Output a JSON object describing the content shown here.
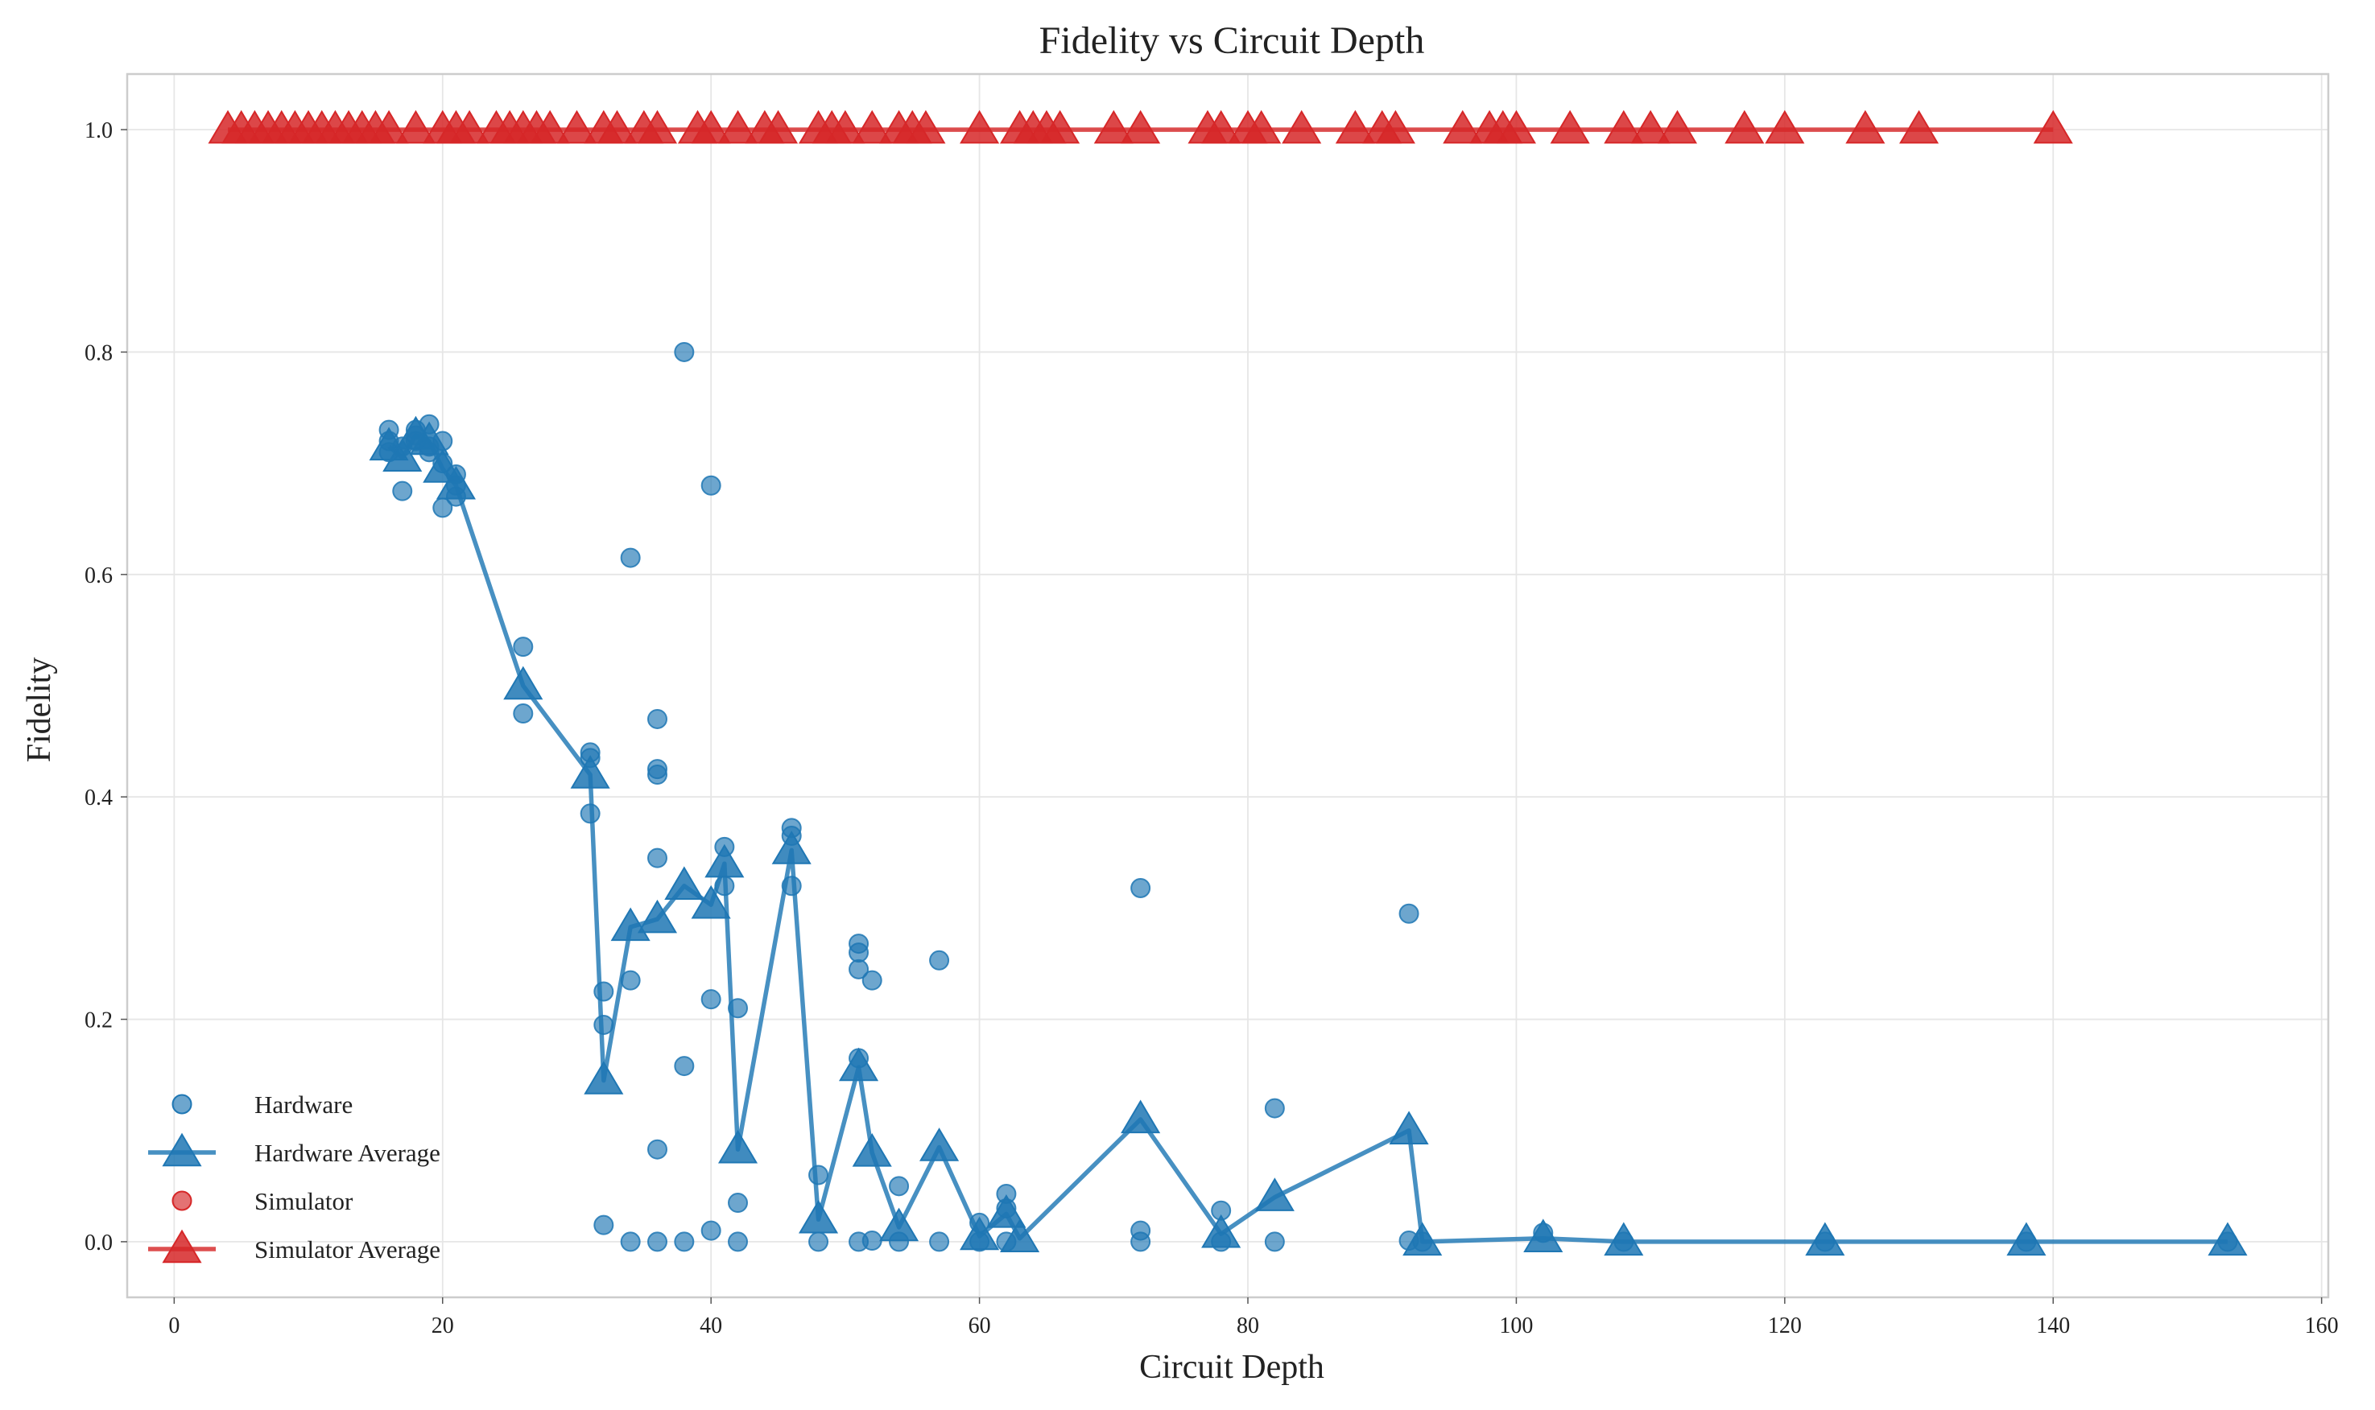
{
  "chart_data": {
    "type": "scatter",
    "title": "Fidelity vs Circuit Depth",
    "xlabel": "Circuit Depth",
    "ylabel": "Fidelity",
    "xlim": [
      -3.5,
      160.5
    ],
    "ylim": [
      -0.05,
      1.05
    ],
    "xticks": [
      0,
      20,
      40,
      60,
      80,
      100,
      120,
      140,
      160
    ],
    "yticks": [
      0.0,
      0.2,
      0.4,
      0.6,
      0.8,
      1.0
    ],
    "grid": true,
    "legend_position": "bottom-left",
    "colors": {
      "hardware": "#1f77b4",
      "simulator": "#d62728"
    },
    "series": [
      {
        "name": "Hardware",
        "kind": "scatter",
        "points": [
          [
            16,
            0.73
          ],
          [
            16,
            0.72
          ],
          [
            16,
            0.71
          ],
          [
            17,
            0.675
          ],
          [
            17,
            0.715
          ],
          [
            18,
            0.73
          ],
          [
            18,
            0.725
          ],
          [
            18,
            0.72
          ],
          [
            19,
            0.735
          ],
          [
            19,
            0.715
          ],
          [
            19,
            0.71
          ],
          [
            20,
            0.72
          ],
          [
            20,
            0.7
          ],
          [
            20,
            0.66
          ],
          [
            21,
            0.69
          ],
          [
            21,
            0.68
          ],
          [
            21,
            0.67
          ],
          [
            26,
            0.535
          ],
          [
            26,
            0.475
          ],
          [
            31,
            0.44
          ],
          [
            31,
            0.435
          ],
          [
            31,
            0.385
          ],
          [
            32,
            0.225
          ],
          [
            32,
            0.195
          ],
          [
            32,
            0.015
          ],
          [
            34,
            0.615
          ],
          [
            34,
            0.235
          ],
          [
            34,
            0.0
          ],
          [
            36,
            0.47
          ],
          [
            36,
            0.425
          ],
          [
            36,
            0.42
          ],
          [
            36,
            0.345
          ],
          [
            36,
            0.083
          ],
          [
            36,
            0.0
          ],
          [
            38,
            0.8
          ],
          [
            38,
            0.158
          ],
          [
            38,
            0.0
          ],
          [
            40,
            0.68
          ],
          [
            40,
            0.218
          ],
          [
            40,
            0.01
          ],
          [
            41,
            0.355
          ],
          [
            41,
            0.32
          ],
          [
            42,
            0.21
          ],
          [
            42,
            0.035
          ],
          [
            42,
            0.0
          ],
          [
            46,
            0.372
          ],
          [
            46,
            0.365
          ],
          [
            46,
            0.32
          ],
          [
            48,
            0.06
          ],
          [
            48,
            0.0
          ],
          [
            51,
            0.268
          ],
          [
            51,
            0.26
          ],
          [
            51,
            0.245
          ],
          [
            51,
            0.165
          ],
          [
            51,
            0.0
          ],
          [
            52,
            0.235
          ],
          [
            52,
            0.001
          ],
          [
            54,
            0.05
          ],
          [
            54,
            0.0
          ],
          [
            57,
            0.253
          ],
          [
            57,
            0.0
          ],
          [
            60,
            0.017
          ],
          [
            60,
            0.0
          ],
          [
            62,
            0.043
          ],
          [
            62,
            0.03
          ],
          [
            62,
            0.0
          ],
          [
            72,
            0.318
          ],
          [
            72,
            0.01
          ],
          [
            72,
            0.0
          ],
          [
            78,
            0.028
          ],
          [
            78,
            0.0
          ],
          [
            82,
            0.12
          ],
          [
            82,
            0.0
          ],
          [
            92,
            0.295
          ],
          [
            92,
            0.001
          ],
          [
            93,
            0.0
          ],
          [
            102,
            0.008
          ],
          [
            108,
            0.0
          ],
          [
            123,
            0.0
          ],
          [
            138,
            0.0
          ],
          [
            153,
            0.0
          ]
        ]
      },
      {
        "name": "Hardware Average",
        "kind": "line-marker",
        "points": [
          [
            16,
            0.715
          ],
          [
            17,
            0.705
          ],
          [
            18,
            0.725
          ],
          [
            19,
            0.72
          ],
          [
            20,
            0.695
          ],
          [
            21,
            0.68
          ],
          [
            26,
            0.5
          ],
          [
            31,
            0.42
          ],
          [
            32,
            0.145
          ],
          [
            34,
            0.283
          ],
          [
            36,
            0.29
          ],
          [
            38,
            0.32
          ],
          [
            40,
            0.303
          ],
          [
            41,
            0.34
          ],
          [
            42,
            0.083
          ],
          [
            46,
            0.352
          ],
          [
            48,
            0.02
          ],
          [
            51,
            0.157
          ],
          [
            52,
            0.08
          ],
          [
            54,
            0.013
          ],
          [
            57,
            0.085
          ],
          [
            60,
            0.005
          ],
          [
            62,
            0.025
          ],
          [
            63,
            0.003
          ],
          [
            72,
            0.11
          ],
          [
            78,
            0.007
          ],
          [
            82,
            0.04
          ],
          [
            92,
            0.1
          ],
          [
            93,
            0.0
          ],
          [
            102,
            0.003
          ],
          [
            108,
            0.0
          ],
          [
            123,
            0.0
          ],
          [
            138,
            0.0
          ],
          [
            153,
            0.0
          ]
        ]
      },
      {
        "name": "Simulator",
        "kind": "scatter",
        "points": []
      },
      {
        "name": "Simulator Average",
        "kind": "line-marker",
        "points": [
          [
            4,
            1.0
          ],
          [
            5,
            1.0
          ],
          [
            6,
            1.0
          ],
          [
            7,
            1.0
          ],
          [
            8,
            1.0
          ],
          [
            9,
            1.0
          ],
          [
            10,
            1.0
          ],
          [
            11,
            1.0
          ],
          [
            12,
            1.0
          ],
          [
            13,
            1.0
          ],
          [
            14,
            1.0
          ],
          [
            15,
            1.0
          ],
          [
            16,
            1.0
          ],
          [
            18,
            1.0
          ],
          [
            20,
            1.0
          ],
          [
            21,
            1.0
          ],
          [
            22,
            1.0
          ],
          [
            24,
            1.0
          ],
          [
            25,
            1.0
          ],
          [
            26,
            1.0
          ],
          [
            27,
            1.0
          ],
          [
            28,
            1.0
          ],
          [
            30,
            1.0
          ],
          [
            32,
            1.0
          ],
          [
            33,
            1.0
          ],
          [
            35,
            1.0
          ],
          [
            36,
            1.0
          ],
          [
            39,
            1.0
          ],
          [
            40,
            1.0
          ],
          [
            42,
            1.0
          ],
          [
            44,
            1.0
          ],
          [
            45,
            1.0
          ],
          [
            48,
            1.0
          ],
          [
            49,
            1.0
          ],
          [
            50,
            1.0
          ],
          [
            52,
            1.0
          ],
          [
            54,
            1.0
          ],
          [
            55,
            1.0
          ],
          [
            56,
            1.0
          ],
          [
            60,
            1.0
          ],
          [
            63,
            1.0
          ],
          [
            64,
            1.0
          ],
          [
            65,
            1.0
          ],
          [
            66,
            1.0
          ],
          [
            70,
            1.0
          ],
          [
            72,
            1.0
          ],
          [
            77,
            1.0
          ],
          [
            78,
            1.0
          ],
          [
            80,
            1.0
          ],
          [
            81,
            1.0
          ],
          [
            84,
            1.0
          ],
          [
            88,
            1.0
          ],
          [
            90,
            1.0
          ],
          [
            91,
            1.0
          ],
          [
            96,
            1.0
          ],
          [
            98,
            1.0
          ],
          [
            99,
            1.0
          ],
          [
            100,
            1.0
          ],
          [
            104,
            1.0
          ],
          [
            108,
            1.0
          ],
          [
            110,
            1.0
          ],
          [
            112,
            1.0
          ],
          [
            117,
            1.0
          ],
          [
            120,
            1.0
          ],
          [
            126,
            1.0
          ],
          [
            130,
            1.0
          ],
          [
            140,
            1.0
          ]
        ]
      }
    ]
  }
}
